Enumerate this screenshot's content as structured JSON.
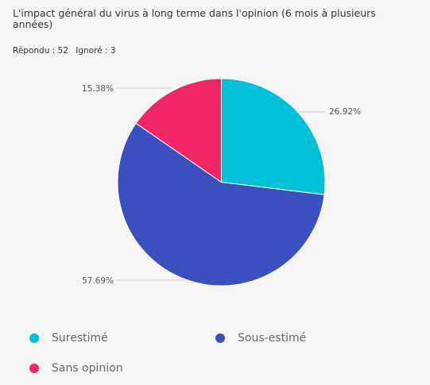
{
  "chart_data": {
    "type": "pie",
    "title": "L'impact général du virus à long terme dans l'opinion (6 mois à plusieurs années)",
    "stats": {
      "answered": "Répondu : 52",
      "skipped": "Ignoré : 3"
    },
    "slices": [
      {
        "name": "Surestimé",
        "value": 26.92,
        "label": "26.92%",
        "color": "#00c1d8"
      },
      {
        "name": "Sous-estimé",
        "value": 57.69,
        "label": "57.69%",
        "color": "#3b50bf"
      },
      {
        "name": "Sans opinion",
        "value": 15.38,
        "label": "15.38%",
        "color": "#f02765"
      }
    ],
    "legend_position": "bottom"
  }
}
